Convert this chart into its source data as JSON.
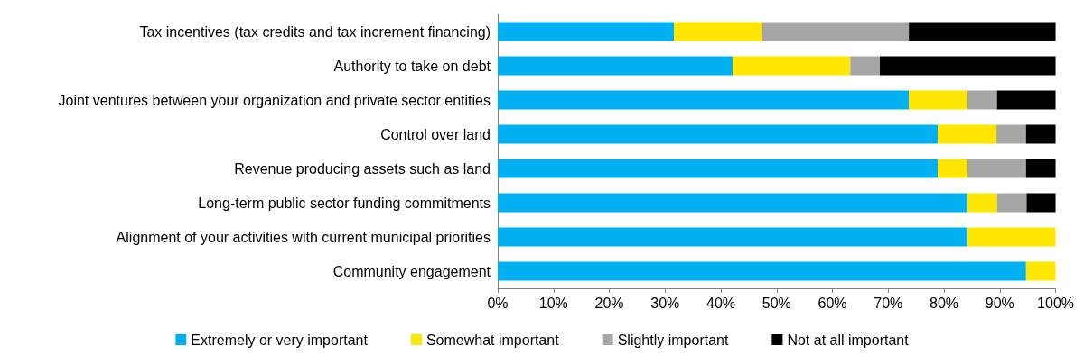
{
  "chart_data": {
    "type": "bar",
    "orientation": "horizontal",
    "stacked": true,
    "categories": [
      "Tax incentives (tax credits and tax increment financing)",
      "Authority to take on debt",
      "Joint ventures between your organization and private sector entities",
      "Control over land",
      "Revenue producing assets such as land",
      "Long-term public sector funding commitments",
      "Alignment of your activities with current municipal priorities",
      "Community engagement"
    ],
    "series": [
      {
        "name": "Extremely or very important",
        "color": "#00b0f0",
        "values": [
          31.6,
          42.1,
          73.7,
          78.9,
          78.9,
          84.2,
          84.2,
          94.7
        ]
      },
      {
        "name": "Somewhat important",
        "color": "#ffe600",
        "values": [
          15.8,
          21.1,
          10.5,
          10.5,
          5.3,
          5.3,
          15.8,
          5.3
        ]
      },
      {
        "name": "Slightly important",
        "color": "#a6a6a6",
        "values": [
          26.3,
          5.3,
          5.3,
          5.3,
          10.5,
          5.3,
          null,
          null
        ]
      },
      {
        "name": "Not at all important",
        "color": "#000000",
        "values": [
          26.3,
          31.5,
          10.5,
          5.3,
          5.3,
          5.2,
          null,
          null
        ]
      }
    ],
    "xlim": [
      0,
      100
    ],
    "xticks": [
      {
        "value": 0,
        "label": "0%"
      },
      {
        "value": 10,
        "label": "10%"
      },
      {
        "value": 20,
        "label": "20%"
      },
      {
        "value": 30,
        "label": "30%"
      },
      {
        "value": 40,
        "label": "40%"
      },
      {
        "value": 50,
        "label": "50%"
      },
      {
        "value": 60,
        "label": "60%"
      },
      {
        "value": 70,
        "label": "70%"
      },
      {
        "value": 80,
        "label": "80%"
      },
      {
        "value": 90,
        "label": "90%"
      },
      {
        "value": 100,
        "label": "100%"
      }
    ],
    "grid": false,
    "legend": "bottom"
  }
}
